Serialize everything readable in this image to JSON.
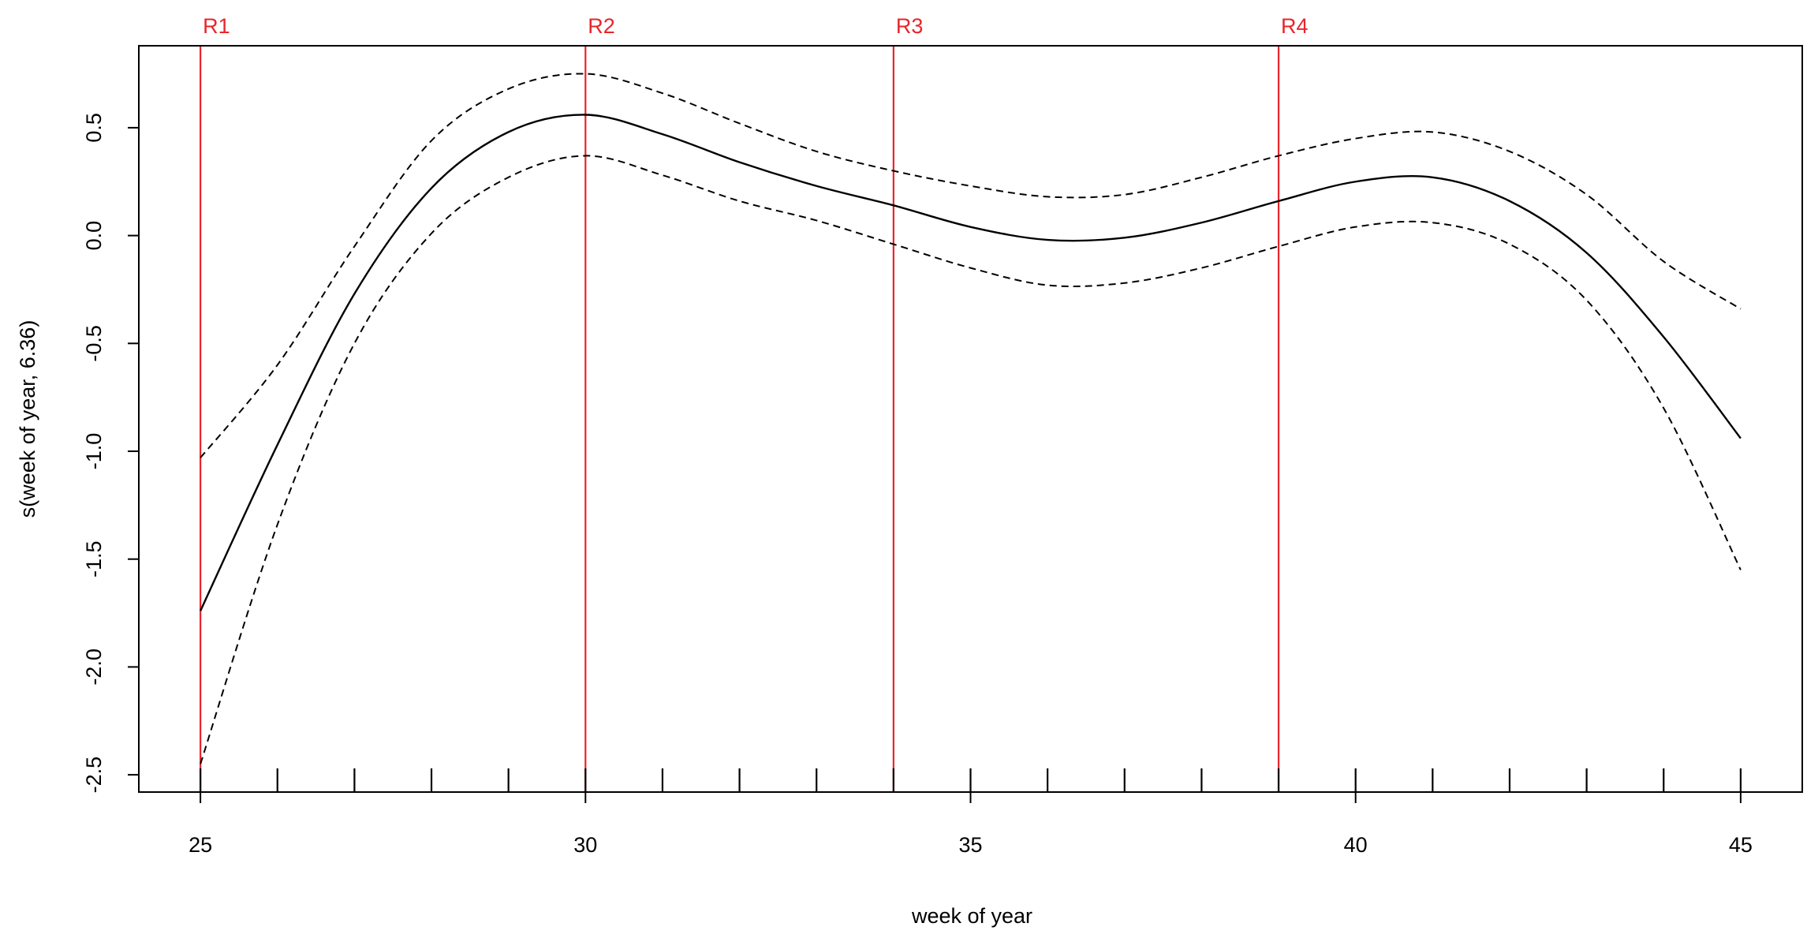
{
  "chart_data": {
    "type": "line",
    "title": "",
    "xlabel": "week of year",
    "ylabel": "s(week of year, 6.36)",
    "xlim": [
      24.2,
      45.8
    ],
    "ylim": [
      -2.58,
      0.88
    ],
    "x_ticks": [
      25,
      30,
      35,
      40,
      45
    ],
    "x_tick_labels": [
      "25",
      "30",
      "35",
      "40",
      "45"
    ],
    "y_ticks": [
      -2.5,
      -2.0,
      -1.5,
      -1.0,
      -0.5,
      0.0,
      0.5
    ],
    "y_tick_labels": [
      "-2.5",
      "-2.0",
      "-1.5",
      "-1.0",
      "-0.5",
      "0.0",
      "0.5"
    ],
    "rug": [
      25,
      26,
      27,
      28,
      29,
      30,
      31,
      32,
      33,
      34,
      35,
      36,
      37,
      38,
      39,
      40,
      41,
      42,
      43,
      44,
      45
    ],
    "grid": false,
    "legend": null,
    "reference_lines": [
      {
        "label": "R1",
        "x": 25,
        "color": "#e8252b"
      },
      {
        "label": "R2",
        "x": 30,
        "color": "#e8252b"
      },
      {
        "label": "R3",
        "x": 34,
        "color": "#e8252b"
      },
      {
        "label": "R4",
        "x": 39,
        "color": "#e8252b"
      }
    ],
    "x": [
      25,
      26,
      27,
      28,
      29,
      30,
      31,
      32,
      33,
      34,
      35,
      36,
      37,
      38,
      39,
      40,
      41,
      42,
      43,
      44,
      45
    ],
    "series": [
      {
        "role": "estimate",
        "style": "solid",
        "color": "#000000",
        "values": [
          -1.74,
          -0.97,
          -0.27,
          0.22,
          0.48,
          0.56,
          0.47,
          0.34,
          0.23,
          0.14,
          0.04,
          -0.02,
          -0.01,
          0.06,
          0.16,
          0.25,
          0.27,
          0.16,
          -0.08,
          -0.47,
          -0.94
        ]
      },
      {
        "role": "upper_bound",
        "style": "dashed",
        "color": "#000000",
        "values": [
          -1.03,
          -0.6,
          -0.05,
          0.44,
          0.68,
          0.75,
          0.66,
          0.52,
          0.39,
          0.3,
          0.23,
          0.18,
          0.19,
          0.27,
          0.37,
          0.45,
          0.48,
          0.39,
          0.19,
          -0.12,
          -0.34
        ]
      },
      {
        "role": "lower_bound",
        "style": "dashed",
        "color": "#000000",
        "values": [
          -2.45,
          -1.34,
          -0.5,
          0.01,
          0.27,
          0.37,
          0.28,
          0.16,
          0.07,
          -0.04,
          -0.15,
          -0.23,
          -0.22,
          -0.15,
          -0.05,
          0.04,
          0.06,
          -0.04,
          -0.3,
          -0.8,
          -1.55
        ]
      }
    ]
  }
}
